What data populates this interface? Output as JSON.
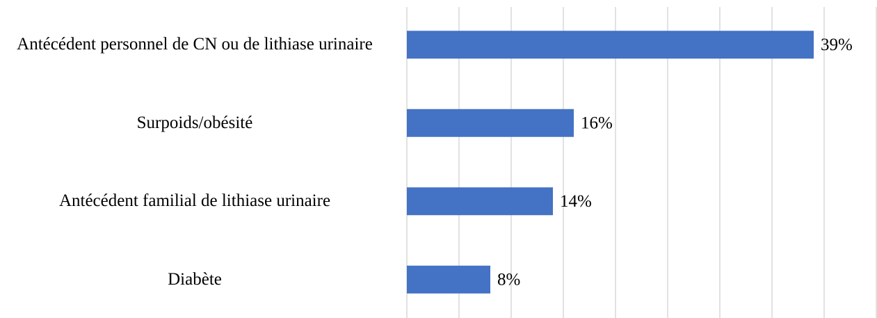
{
  "chart_data": {
    "type": "bar",
    "orientation": "horizontal",
    "categories": [
      "Antécédent personnel de CN ou de lithiase urinaire",
      "Surpoids/obésité",
      "Antécédent familial de lithiase urinaire",
      "Diabète"
    ],
    "values": [
      39,
      16,
      14,
      8
    ],
    "value_labels": [
      "39%",
      "16%",
      "14%",
      "8%"
    ],
    "color": "#4472c4",
    "xlim": [
      0,
      45
    ],
    "xticks": [
      0,
      5,
      10,
      15,
      20,
      25,
      30,
      35,
      40,
      45
    ],
    "grid": true
  }
}
